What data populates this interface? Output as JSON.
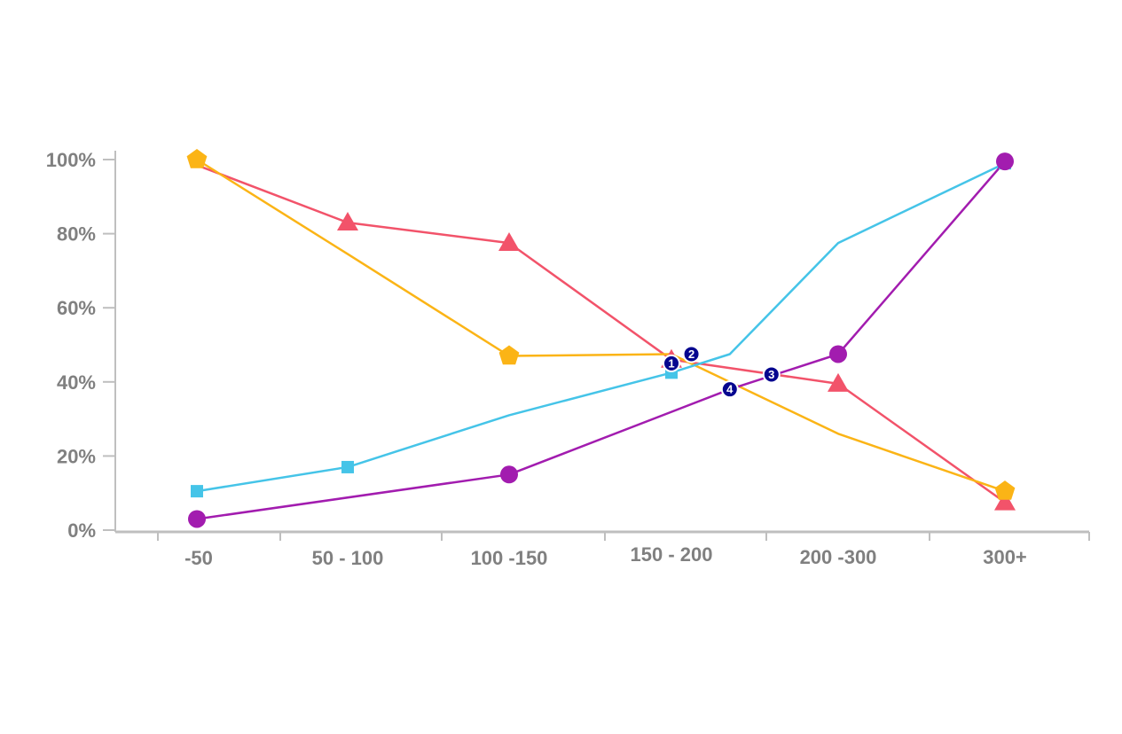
{
  "chart_data": {
    "type": "line",
    "categories": [
      "-50",
      "50 - 100",
      "100 -150",
      "150 - 200",
      "200 -300",
      "300+"
    ],
    "yticks": [
      "0%",
      "20%",
      "40%",
      "60%",
      "80%",
      "100%"
    ],
    "ylim": [
      0,
      100
    ],
    "grid": false,
    "series": [
      {
        "color": "#f2536a",
        "marker": "triangle",
        "points": [
          [
            0,
            98.5
          ],
          [
            1,
            83
          ],
          [
            2,
            77.5
          ],
          [
            3,
            46
          ],
          [
            4,
            39.5
          ],
          [
            5,
            7.5
          ]
        ],
        "marked": [
          1,
          2,
          3,
          4,
          5
        ]
      },
      {
        "color": "#fbb416",
        "marker": "pentagon",
        "points": [
          [
            0,
            100
          ],
          [
            1,
            74.5
          ],
          [
            2,
            47
          ],
          [
            3,
            47.5
          ],
          [
            4,
            26
          ],
          [
            5,
            10.5
          ]
        ],
        "marked": [
          0,
          2,
          5
        ]
      },
      {
        "color": "#45c4e8",
        "marker": "square",
        "points": [
          [
            0,
            10.5
          ],
          [
            1,
            17
          ],
          [
            2,
            31
          ],
          [
            3,
            42.5
          ],
          [
            3.35,
            47.5
          ],
          [
            4,
            77.5
          ],
          [
            5,
            99
          ]
        ],
        "marked": [
          0,
          1,
          3,
          6
        ]
      },
      {
        "color": "#a21caf",
        "marker": "circle",
        "points": [
          [
            0,
            3
          ],
          [
            2,
            15
          ],
          [
            3.35,
            38
          ],
          [
            4,
            47.5
          ],
          [
            5,
            99.5
          ]
        ],
        "marked": [
          0,
          1,
          3,
          4
        ]
      }
    ],
    "annotations": [
      {
        "label": "1",
        "x": 3.0,
        "y": 45
      },
      {
        "label": "2",
        "x": 3.12,
        "y": 47.5
      },
      {
        "label": "3",
        "x": 3.6,
        "y": 42
      },
      {
        "label": "4",
        "x": 3.35,
        "y": 38
      }
    ],
    "axis_color": "#bfbfbf",
    "annotation_color": "#06068f"
  }
}
